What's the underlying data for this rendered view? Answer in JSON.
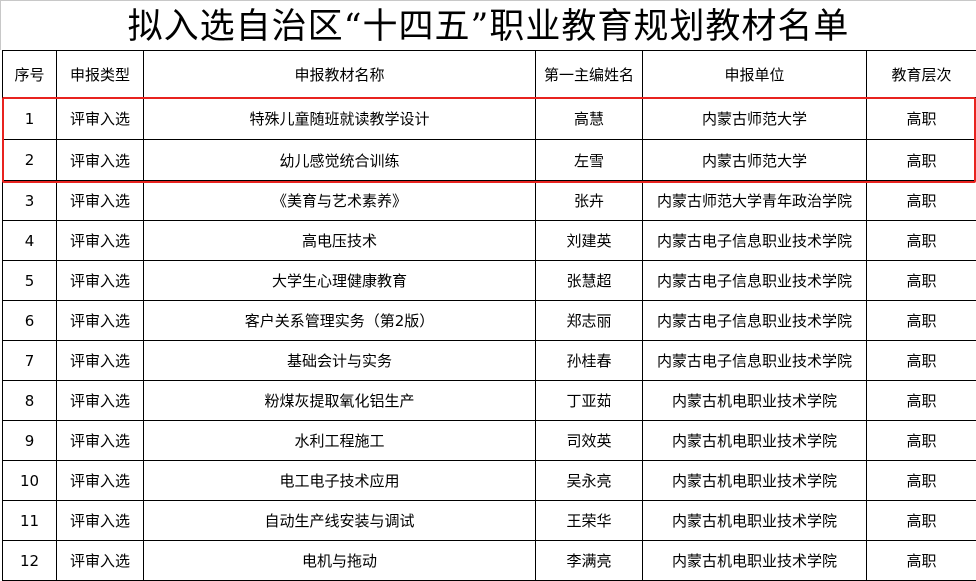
{
  "title": "拟入选自治区“十四五”职业教育规划教材名单",
  "highlight_color": "#e8231f",
  "columns": [
    "序号",
    "申报类型",
    "申报教材名称",
    "第一主编姓名",
    "申报单位",
    "教育层次"
  ],
  "rows": [
    [
      "1",
      "评审入选",
      "特殊儿童随班就读教学设计",
      "高慧",
      "内蒙古师范大学",
      "高职"
    ],
    [
      "2",
      "评审入选",
      "幼儿感觉统合训练",
      "左雪",
      "内蒙古师范大学",
      "高职"
    ],
    [
      "3",
      "评审入选",
      "《美育与艺术素养》",
      "张卉",
      "内蒙古师范大学青年政治学院",
      "高职"
    ],
    [
      "4",
      "评审入选",
      "高电压技术",
      "刘建英",
      "内蒙古电子信息职业技术学院",
      "高职"
    ],
    [
      "5",
      "评审入选",
      "大学生心理健康教育",
      "张慧超",
      "内蒙古电子信息职业技术学院",
      "高职"
    ],
    [
      "6",
      "评审入选",
      "客户关系管理实务（第2版）",
      "郑志丽",
      "内蒙古电子信息职业技术学院",
      "高职"
    ],
    [
      "7",
      "评审入选",
      "基础会计与实务",
      "孙桂春",
      "内蒙古电子信息职业技术学院",
      "高职"
    ],
    [
      "8",
      "评审入选",
      "粉煤灰提取氧化铝生产",
      "丁亚茹",
      "内蒙古机电职业技术学院",
      "高职"
    ],
    [
      "9",
      "评审入选",
      "水利工程施工",
      "司效英",
      "内蒙古机电职业技术学院",
      "高职"
    ],
    [
      "10",
      "评审入选",
      "电工电子技术应用",
      "吴永亮",
      "内蒙古机电职业技术学院",
      "高职"
    ],
    [
      "11",
      "评审入选",
      "自动生产线安装与调试",
      "王荣华",
      "内蒙古机电职业技术学院",
      "高职"
    ],
    [
      "12",
      "评审入选",
      "电机与拖动",
      "李满亮",
      "内蒙古机电职业技术学院",
      "高职"
    ]
  ]
}
